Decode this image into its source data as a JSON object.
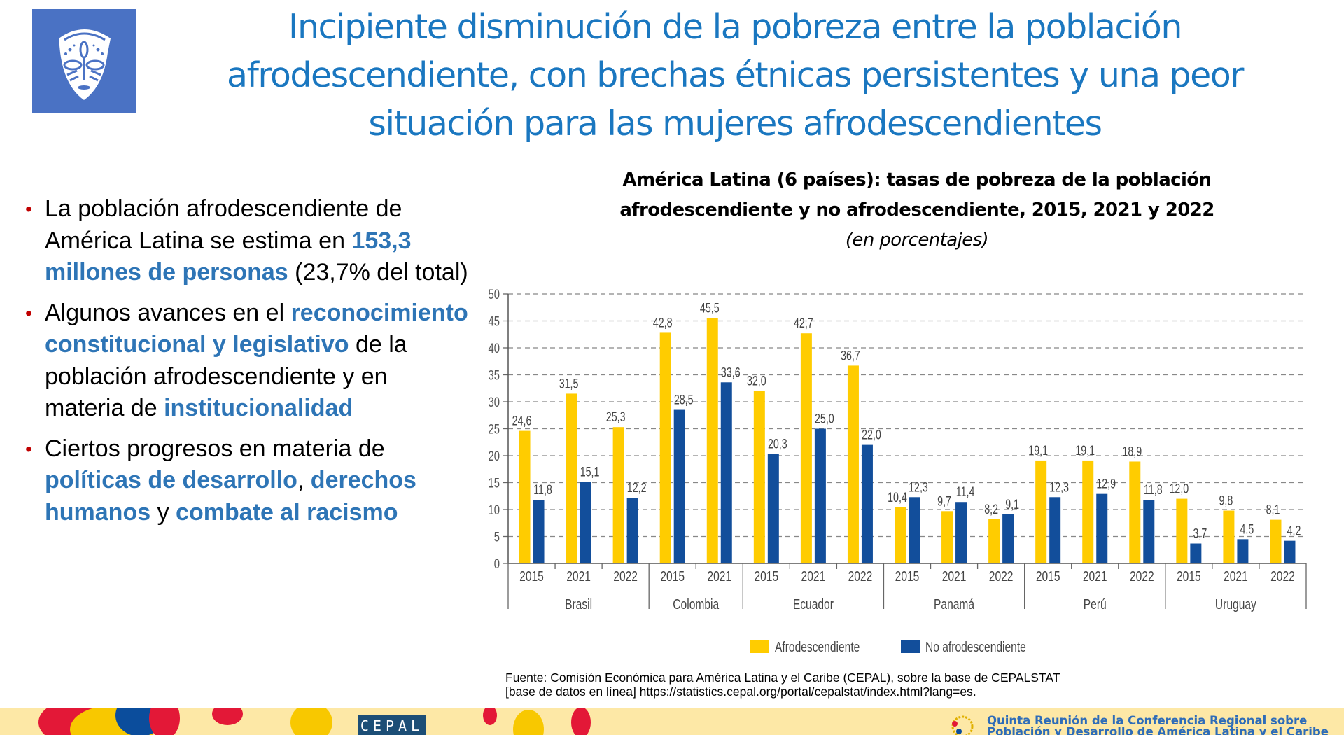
{
  "title": "Incipiente disminución de la pobreza entre la población afrodescendiente, con brechas étnicas persistentes y una peor situación para las mujeres afrodescendientes",
  "logo_icon": "african-mask-icon",
  "bullets": [
    {
      "parts": [
        {
          "text": "La población afrodescendiente de América Latina se estima en ",
          "highlight": false
        },
        {
          "text": "153,3 millones de personas",
          "highlight": true
        },
        {
          "text": " (23,7% del total)",
          "highlight": false
        }
      ]
    },
    {
      "parts": [
        {
          "text": "Algunos avances en el ",
          "highlight": false
        },
        {
          "text": "reconocimiento constitucional y legislativo",
          "highlight": true
        },
        {
          "text": " de la población afrodescendiente y en materia de ",
          "highlight": false
        },
        {
          "text": "institucionalidad",
          "highlight": true
        }
      ]
    },
    {
      "parts": [
        {
          "text": "Ciertos progresos en materia de ",
          "highlight": false
        },
        {
          "text": "políticas de desarrollo",
          "highlight": true
        },
        {
          "text": ", ",
          "highlight": false
        },
        {
          "text": "derechos humanos",
          "highlight": true
        },
        {
          "text": " y ",
          "highlight": false
        },
        {
          "text": "combate al racismo",
          "highlight": true
        }
      ]
    }
  ],
  "chart_data": {
    "type": "bar",
    "title": "América Latina (6 países): tasas de pobreza de la población afrodescendiente y no afrodescendiente, 2015, 2021 y 2022",
    "subtitle": "(en porcentajes)",
    "xlabel": "",
    "ylabel": "",
    "ylim": [
      0,
      50
    ],
    "yticks": [
      0,
      5,
      10,
      15,
      20,
      25,
      30,
      35,
      40,
      45,
      50
    ],
    "grid": true,
    "legend_position": "bottom",
    "groups": [
      {
        "country": "Brasil",
        "years": [
          "2015",
          "2021",
          "2022"
        ]
      },
      {
        "country": "Colombia",
        "years": [
          "2015",
          "2021"
        ]
      },
      {
        "country": "Ecuador",
        "years": [
          "2015",
          "2021",
          "2022"
        ]
      },
      {
        "country": "Panamá",
        "years": [
          "2015",
          "2021",
          "2022"
        ]
      },
      {
        "country": "Perú",
        "years": [
          "2015",
          "2021",
          "2022"
        ]
      },
      {
        "country": "Uruguay",
        "years": [
          "2015",
          "2021",
          "2022"
        ]
      }
    ],
    "categories": [
      "Brasil 2015",
      "Brasil 2021",
      "Brasil 2022",
      "Colombia 2015",
      "Colombia 2021",
      "Ecuador 2015",
      "Ecuador 2021",
      "Ecuador 2022",
      "Panamá 2015",
      "Panamá 2021",
      "Panamá 2022",
      "Perú 2015",
      "Perú 2021",
      "Perú 2022",
      "Uruguay 2015",
      "Uruguay 2021",
      "Uruguay 2022"
    ],
    "series": [
      {
        "name": "Afrodescendiente",
        "color": "#ffcc00",
        "values": [
          24.6,
          31.5,
          25.3,
          42.8,
          45.5,
          32.0,
          42.7,
          36.7,
          10.4,
          9.7,
          8.2,
          19.1,
          19.1,
          18.9,
          12.0,
          9.8,
          8.1
        ],
        "labels": [
          "24,6",
          "31,5",
          "25,3",
          "42,8",
          "45,5",
          "32,0",
          "42,7",
          "36,7",
          "10,4",
          "9,7",
          "8,2",
          "19,1",
          "19,1",
          "18,9",
          "12,0",
          "9,8",
          "8,1"
        ]
      },
      {
        "name": "No afrodescendiente",
        "color": "#124e9b",
        "values": [
          11.8,
          15.1,
          12.2,
          28.5,
          33.6,
          20.3,
          25.0,
          22.0,
          12.3,
          11.4,
          9.1,
          12.3,
          12.9,
          11.8,
          3.7,
          4.5,
          4.2
        ],
        "labels": [
          "11,8",
          "15,1",
          "12,2",
          "28,5",
          "33,6",
          "20,3",
          "25,0",
          "22,0",
          "12,3",
          "11,4",
          "9,1",
          "12,3",
          "12,9",
          "11,8",
          "3,7",
          "4,5",
          "4,2"
        ]
      }
    ]
  },
  "source": {
    "line1": "Fuente: Comisión Económica para América Latina y el Caribe (CEPAL), sobre la base de CEPALSTAT",
    "line2": "[base de datos en línea] https://statistics.cepal.org/portal/cepalstat/index.html?lang=es."
  },
  "footer": {
    "cepal_logo": "CEPAL",
    "conference_line1": "Quinta Reunión de la Conferencia Regional sobre",
    "conference_line2": "Población y Desarrollo de América Latina y el Caribe"
  },
  "colors": {
    "title": "#1a77c0",
    "highlight": "#2e75b6",
    "bullet": "#c00000",
    "footer_bg": "#fde8a6"
  }
}
